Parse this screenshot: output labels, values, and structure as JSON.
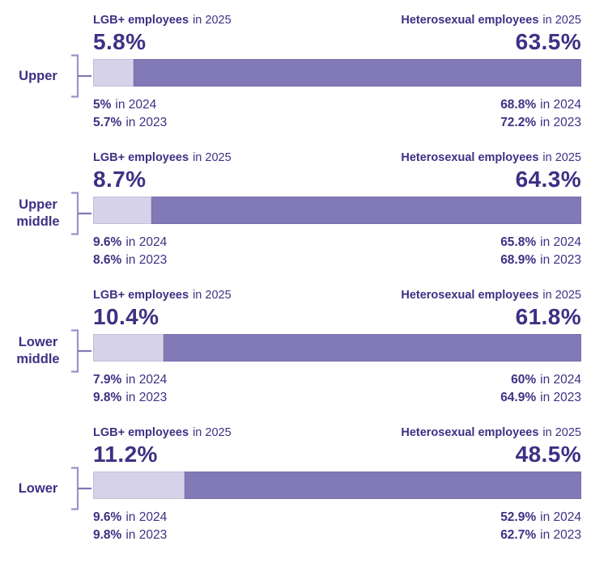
{
  "labels": {
    "lgb_header": "LGB+ employees",
    "het_header": "Heterosexual employees",
    "in_2025": "in 2025",
    "in_2024": "in 2024",
    "in_2023": "in 2023"
  },
  "colors": {
    "text": "#3d3184",
    "lgb_segment": "#d6d2e9",
    "het_segment": "#8279b7",
    "bracket": "#9c92cb"
  },
  "chart_data": {
    "type": "bar",
    "orientation": "horizontal",
    "stacked": true,
    "unit": "%",
    "title": "",
    "categories": [
      "Upper",
      "Upper middle",
      "Lower middle",
      "Lower"
    ],
    "series": [
      {
        "name": "LGB+ employees in 2025",
        "color": "#d6d2e9",
        "values": [
          5.8,
          8.7,
          10.4,
          11.2
        ]
      },
      {
        "name": "Heterosexual employees in 2025",
        "color": "#8279b7",
        "values": [
          63.5,
          64.3,
          61.8,
          48.5
        ]
      }
    ],
    "prior_years": {
      "lgb_2024": [
        5,
        9.6,
        7.9,
        9.6
      ],
      "lgb_2023": [
        5.7,
        8.6,
        9.8,
        9.8
      ],
      "het_2024": [
        68.8,
        65.8,
        60,
        52.9
      ],
      "het_2023": [
        72.2,
        68.9,
        64.9,
        62.7
      ]
    },
    "layout": {
      "grid": false,
      "legend": "none",
      "bar_fills_full_width": true
    },
    "sections": [
      {
        "label": "Upper",
        "lgb_2025": "5.8%",
        "het_2025": "63.5%",
        "lgb_2024": "5%",
        "lgb_2023": "5.7%",
        "het_2024": "68.8%",
        "het_2023": "72.2%"
      },
      {
        "label": "Upper middle",
        "lgb_2025": "8.7%",
        "het_2025": "64.3%",
        "lgb_2024": "9.6%",
        "lgb_2023": "8.6%",
        "het_2024": "65.8%",
        "het_2023": "68.9%"
      },
      {
        "label": "Lower middle",
        "lgb_2025": "10.4%",
        "het_2025": "61.8%",
        "lgb_2024": "7.9%",
        "lgb_2023": "9.8%",
        "het_2024": "60%",
        "het_2023": "64.9%"
      },
      {
        "label": "Lower",
        "lgb_2025": "11.2%",
        "het_2025": "48.5%",
        "lgb_2024": "9.6%",
        "lgb_2023": "9.8%",
        "het_2024": "52.9%",
        "het_2023": "62.7%"
      }
    ]
  }
}
